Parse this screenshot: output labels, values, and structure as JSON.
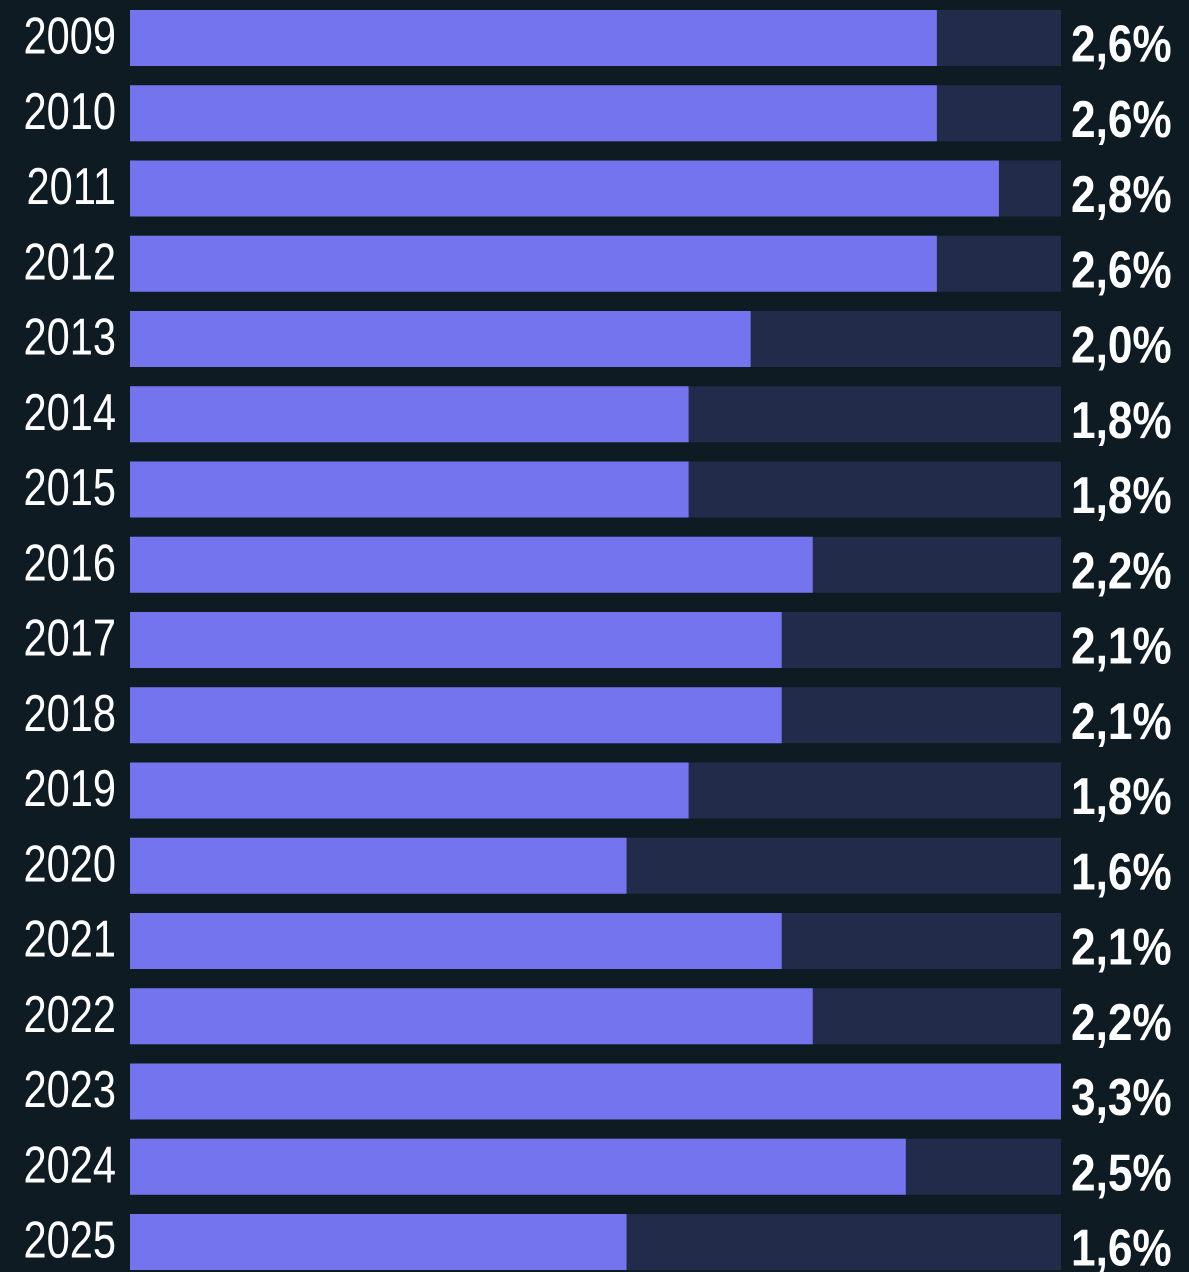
{
  "chart_data": {
    "type": "bar",
    "orientation": "horizontal",
    "categories": [
      "2009",
      "2010",
      "2011",
      "2012",
      "2013",
      "2014",
      "2015",
      "2016",
      "2017",
      "2018",
      "2019",
      "2020",
      "2021",
      "2022",
      "2023",
      "2024",
      "2025"
    ],
    "values": [
      2.6,
      2.6,
      2.8,
      2.6,
      2.0,
      1.8,
      1.8,
      2.2,
      2.1,
      2.1,
      1.8,
      1.6,
      2.1,
      2.2,
      3.3,
      2.5,
      1.6
    ],
    "value_labels": [
      "2,6%",
      "2,6%",
      "2,8%",
      "2,6%",
      "2,0%",
      "1,8%",
      "1,8%",
      "2,2%",
      "2,1%",
      "2,1%",
      "1,8%",
      "1,6%",
      "2,1%",
      "2,2%",
      "3,3%",
      "2,5%",
      "1,6%"
    ],
    "xlim": [
      0,
      3
    ],
    "color": "#7474ee",
    "track_color": "#222b4a",
    "background": "#0e1b22"
  }
}
